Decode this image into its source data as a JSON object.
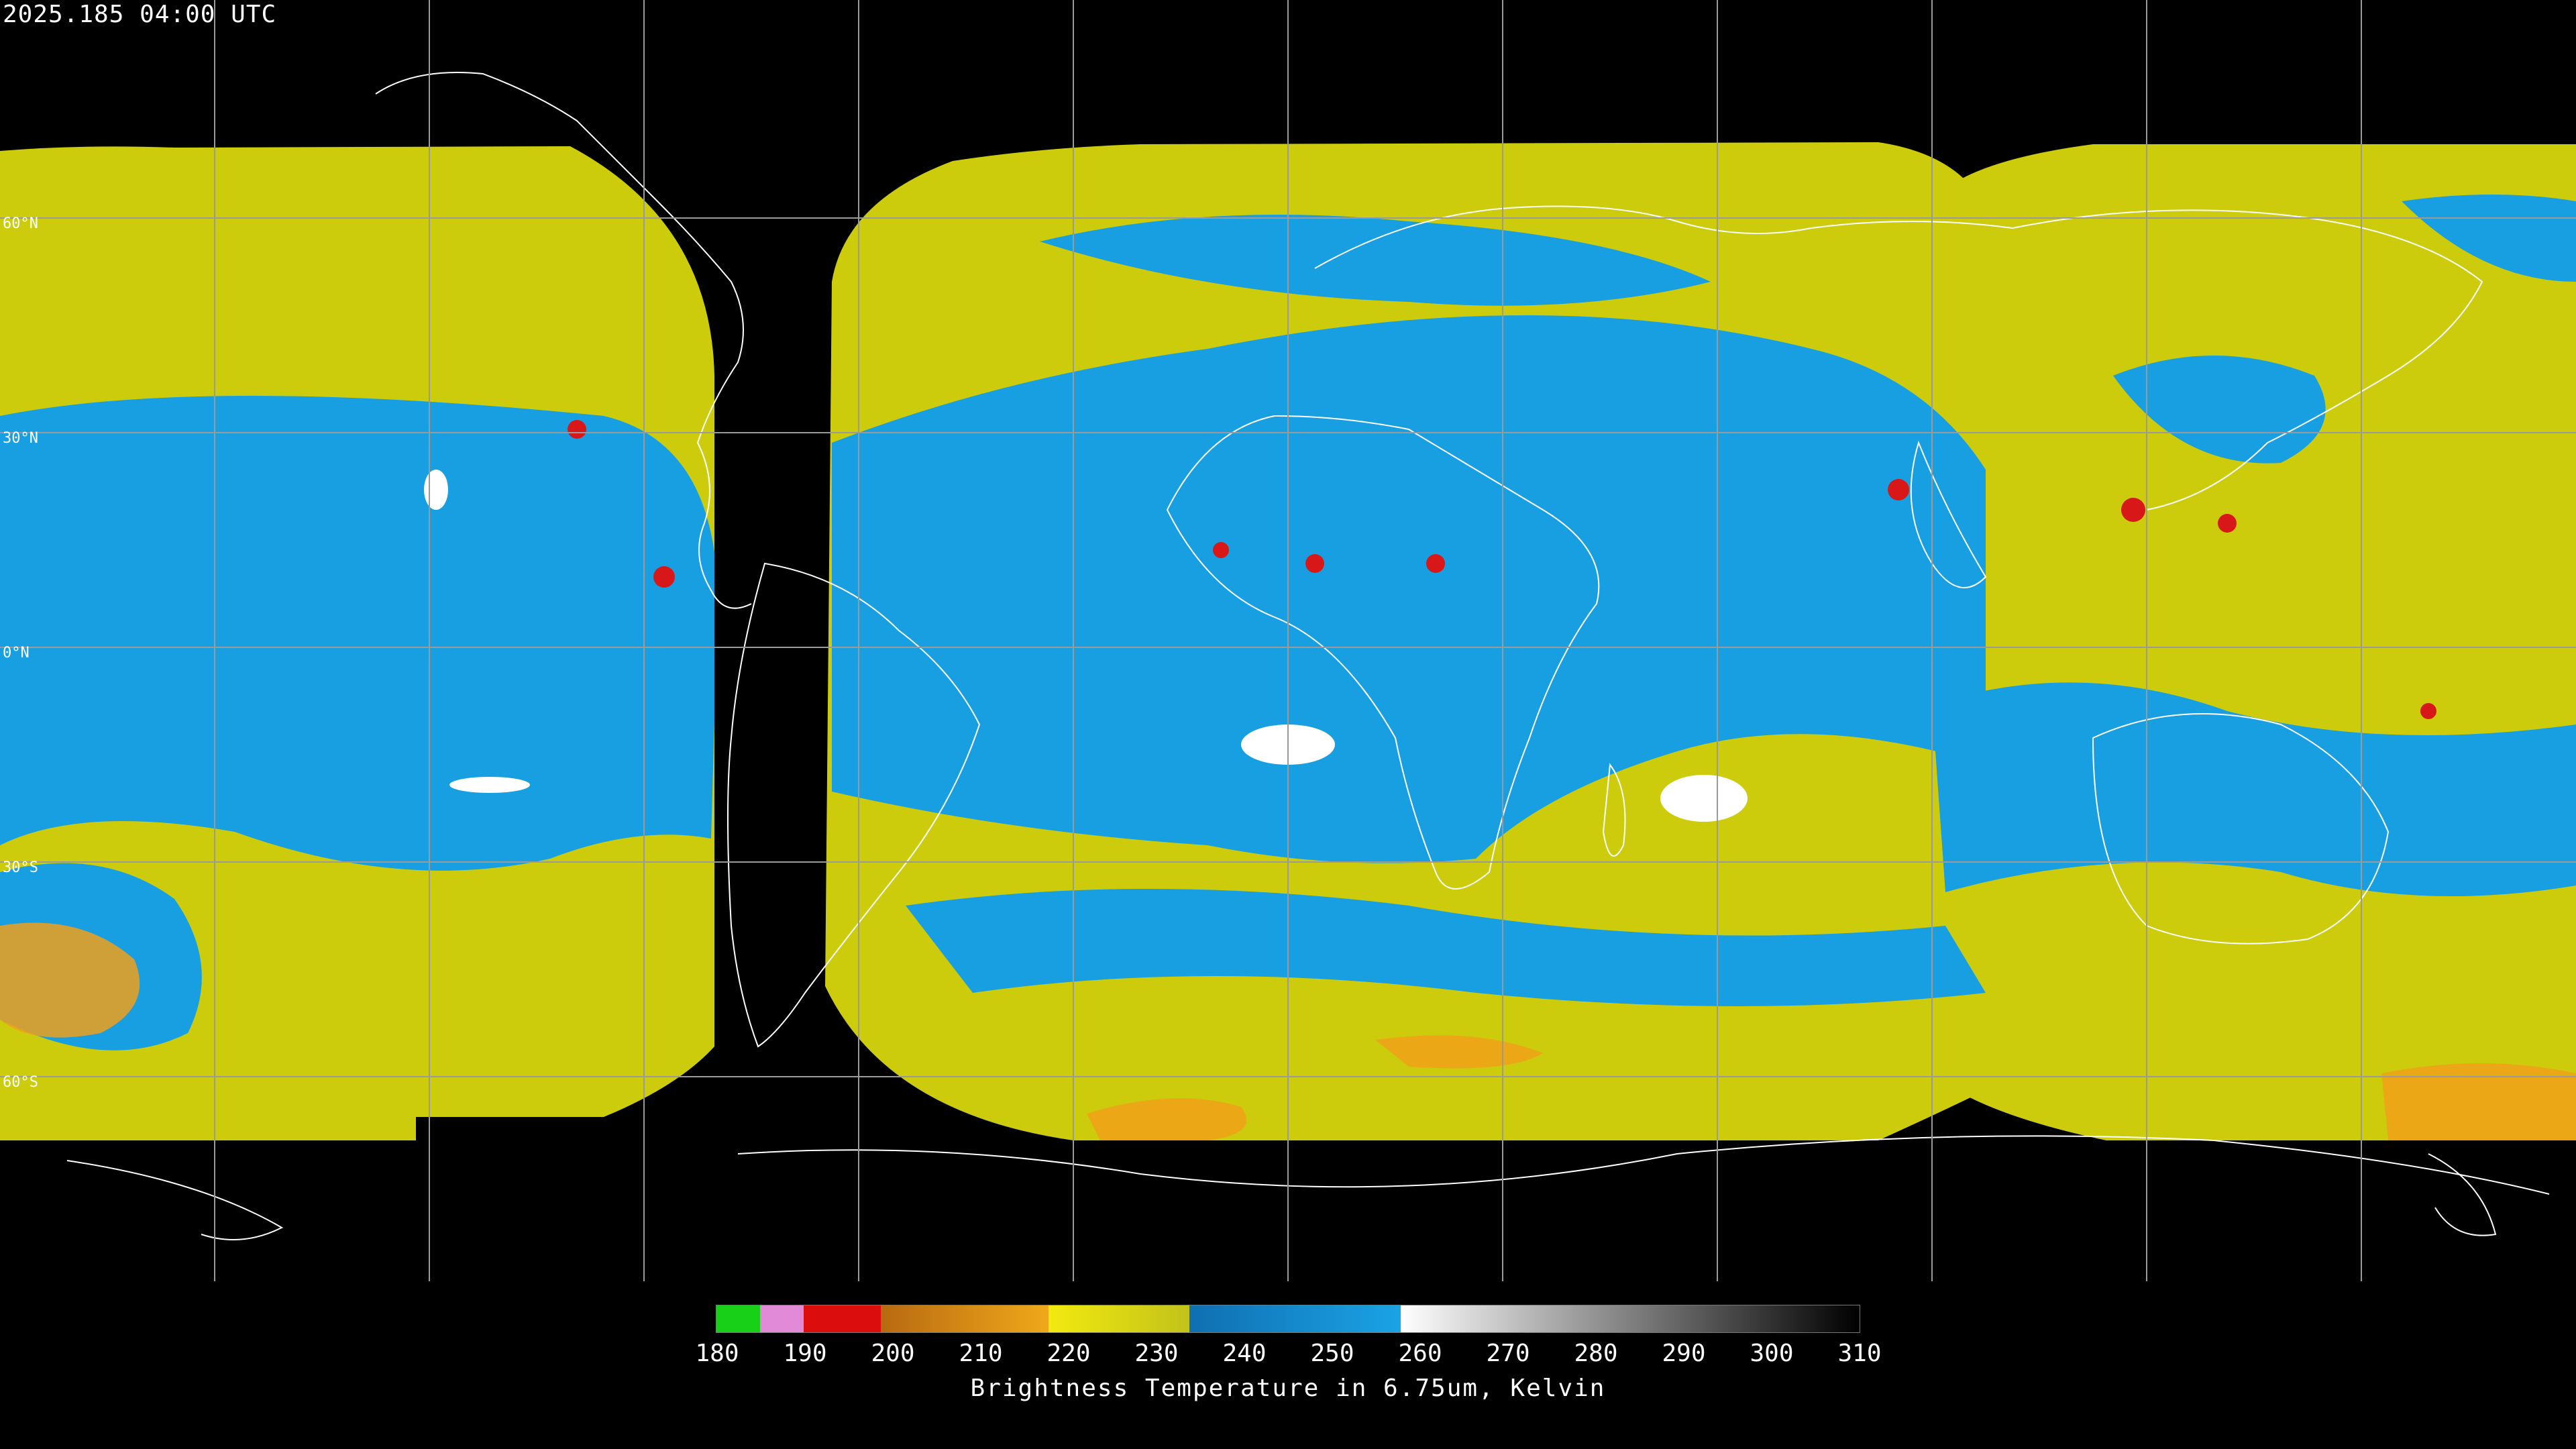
{
  "timestamp": "2025.185 04:00 UTC",
  "latitude_labels": [
    "60°N",
    "30°N",
    "0°N",
    "30°S",
    "60°S"
  ],
  "colorbar": {
    "ticks": [
      "180",
      "190",
      "200",
      "210",
      "220",
      "230",
      "240",
      "250",
      "260",
      "270",
      "280",
      "290",
      "300",
      "310"
    ],
    "title": "Brightness Temperature in 6.75um, Kelvin"
  },
  "colors": {
    "background": "#000000",
    "gridline": "#9a9a9a",
    "coastline": "#ffffff",
    "dry_blue": "#1aa3e6",
    "moist_yellow": "#cfd10a",
    "cold_orange": "#f0a81a",
    "coldest_red": "#d81818"
  }
}
